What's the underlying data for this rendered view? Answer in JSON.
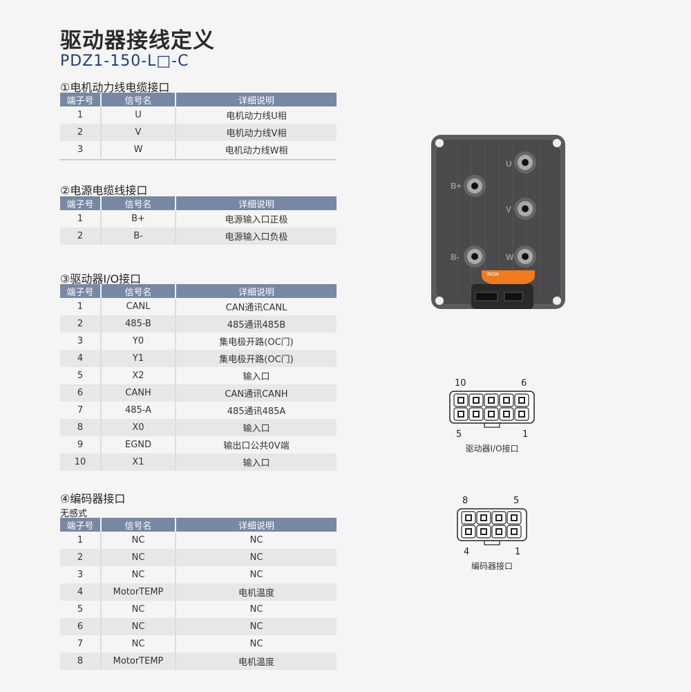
{
  "title": "驱动器接线定义",
  "model": "PDZ1-150-L□-C",
  "headers": [
    "端子号",
    "信号名",
    "详细说明"
  ],
  "sections": [
    {
      "title": "①电机动力线电缆接口",
      "rows": [
        [
          "1",
          "U",
          "电机动力线U相"
        ],
        [
          "2",
          "V",
          "电机动力线V相"
        ],
        [
          "3",
          "W",
          "电机动力线W相"
        ]
      ]
    },
    {
      "title": "②电源电缆线接口",
      "rows": [
        [
          "1",
          "B+",
          "电源输入口正极"
        ],
        [
          "2",
          "B-",
          "电源输入口负极"
        ]
      ]
    },
    {
      "title": "③驱动器I/O接口",
      "rows": [
        [
          "1",
          "CANL",
          "CAN通讯CANL"
        ],
        [
          "2",
          "485-B",
          "485通讯485B"
        ],
        [
          "3",
          "Y0",
          "集电极开路(OC门)"
        ],
        [
          "4",
          "Y1",
          "集电极开路(OC门)"
        ],
        [
          "5",
          "X2",
          "输入口"
        ],
        [
          "6",
          "CANH",
          "CAN通讯CANH"
        ],
        [
          "7",
          "485-A",
          "485通讯485A"
        ],
        [
          "8",
          "X0",
          "输入口"
        ],
        [
          "9",
          "EGND",
          "输出口公共0V端"
        ],
        [
          "10",
          "X1",
          "输入口"
        ]
      ]
    },
    {
      "title": "④编码器接口",
      "subtitle": "无感式",
      "rows": [
        [
          "1",
          "NC",
          "NC"
        ],
        [
          "2",
          "NC",
          "NC"
        ],
        [
          "3",
          "NC",
          "NC"
        ],
        [
          "4",
          "MotorTEMP",
          "电机温度"
        ],
        [
          "5",
          "NC",
          "NC"
        ],
        [
          "6",
          "NC",
          "NC"
        ],
        [
          "7",
          "NC",
          "NC"
        ],
        [
          "8",
          "MotorTEMP",
          "电机温度"
        ]
      ]
    }
  ],
  "device": {
    "labels": [
      "U",
      "B+",
      "V",
      "B-",
      "W"
    ],
    "brand": "IRON"
  },
  "connectors": [
    {
      "caption": "驱动器I/O接口",
      "pins": [
        "10",
        "6",
        "5",
        "1"
      ]
    },
    {
      "caption": "编码器接口",
      "pins": [
        "8",
        "5",
        "4",
        "1"
      ]
    }
  ],
  "colors": {
    "header": "#7887a3",
    "model": "#1d3c7a",
    "brand": "#f07a1e"
  }
}
